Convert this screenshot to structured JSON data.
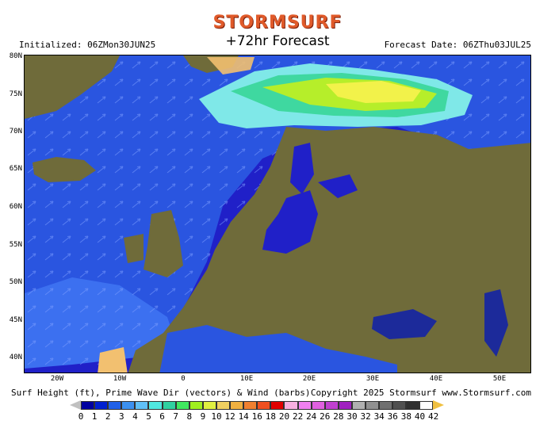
{
  "header": {
    "logo": "STORMSURF",
    "initialized": "Initialized: 06ZMon30JUN25",
    "title": "+72hr Forecast",
    "forecast_date": "Forecast Date: 06ZThu03JUL25"
  },
  "map": {
    "lat_labels": [
      "80N",
      "75N",
      "70N",
      "65N",
      "60N",
      "55N",
      "50N",
      "45N",
      "40N"
    ],
    "lon_labels": [
      "20W",
      "10W",
      "0",
      "10E",
      "20E",
      "30E",
      "40E",
      "50E"
    ],
    "colors": {
      "ocean_deep": "#2020c8",
      "ocean_mid": "#2a55e0",
      "land": "#6f6b3a",
      "swell_low": "#7fe8e8",
      "swell_mid": "#b6ee2a",
      "swell_high": "#f2f24a"
    }
  },
  "footer": {
    "caption": "Surf Height (ft), Prime Wave Dir (vectors) & Wind (barbs)",
    "copyright": "Copyright 2025 Stormsurf www.Stormsurf.com"
  },
  "legend": {
    "ticks": [
      "0",
      "1",
      "2",
      "3",
      "4",
      "5",
      "6",
      "7",
      "8",
      "9",
      "10",
      "12",
      "14",
      "16",
      "18",
      "20",
      "22",
      "24",
      "26",
      "28",
      "30",
      "32",
      "34",
      "36",
      "38",
      "40",
      "42"
    ],
    "colors": [
      "#0000a0",
      "#0020d0",
      "#2060e8",
      "#3c90f0",
      "#60c0f8",
      "#50e8e0",
      "#30d0a0",
      "#40e860",
      "#a0f020",
      "#e0f040",
      "#f0d060",
      "#f0b040",
      "#f08030",
      "#f05020",
      "#e00000",
      "#f8b0e0",
      "#f080f0",
      "#e060e0",
      "#c040d0",
      "#a020c0",
      "#b0b0b0",
      "#909090",
      "#707070",
      "#505050",
      "#303030",
      "#ffffff"
    ],
    "arrow_left": "#c0c0c0",
    "arrow_right": "#f0c040"
  }
}
